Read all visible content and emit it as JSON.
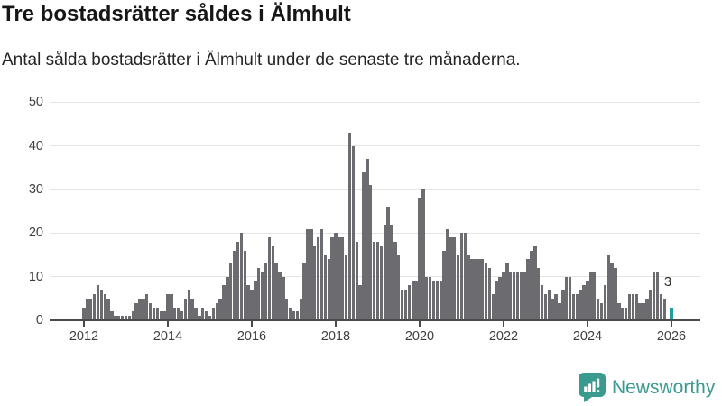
{
  "title": "Tre bostadsrätter såldes i Älmhult",
  "subtitle": "Antal sålda bostadsrätter i Älmhult under de senaste tre månaderna.",
  "annotation": {
    "text": "3"
  },
  "footer": {
    "brand": "Newsworthy",
    "logo_icon": "bar-chart-speech-bubble-icon"
  },
  "colors": {
    "bar": "#6b6b70",
    "highlight": "#219ca0",
    "grid": "#e4e4e4",
    "axis": "#4a4a4a",
    "tick_text": "#3f3f3f",
    "brand": "#3b9a8e"
  },
  "chart_data": {
    "type": "bar",
    "title": "Tre bostadsrätter såldes i Älmhult",
    "subtitle": "Antal sålda bostadsrätter i Älmhult under de senaste tre månaderna.",
    "frequency": "monthly",
    "x_start": "2012-01",
    "x_tick_labels": [
      "2012",
      "2014",
      "2016",
      "2018",
      "2020",
      "2022",
      "2024",
      "2026"
    ],
    "y_ticks": [
      0,
      10,
      20,
      30,
      40,
      50
    ],
    "ylim": [
      0,
      50
    ],
    "grid": "horizontal",
    "legend": "none",
    "highlight_last": true,
    "highlight_value": 3,
    "values": [
      3,
      5,
      5,
      6,
      8,
      7,
      6,
      5,
      2,
      1,
      1,
      1,
      1,
      1,
      2,
      4,
      5,
      5,
      6,
      4,
      3,
      3,
      2,
      2,
      6,
      6,
      3,
      3,
      2,
      5,
      7,
      5,
      3,
      1,
      3,
      2,
      1,
      3,
      4,
      5,
      8,
      10,
      13,
      16,
      18,
      20,
      16,
      8,
      7,
      9,
      12,
      11,
      13,
      19,
      17,
      13,
      11,
      10,
      5,
      3,
      2,
      2,
      5,
      13,
      21,
      21,
      17,
      19,
      21,
      15,
      14,
      19,
      20,
      19,
      19,
      15,
      43,
      40,
      18,
      8,
      34,
      37,
      31,
      18,
      18,
      17,
      22,
      26,
      22,
      18,
      15,
      7,
      7,
      8,
      9,
      9,
      28,
      30,
      10,
      10,
      9,
      9,
      9,
      16,
      21,
      19,
      19,
      15,
      20,
      20,
      15,
      14,
      14,
      14,
      14,
      13,
      12,
      6,
      9,
      10,
      11,
      13,
      11,
      11,
      11,
      11,
      11,
      14,
      16,
      17,
      12,
      8,
      6,
      7,
      5,
      6,
      4,
      7,
      10,
      10,
      6,
      6,
      7,
      8,
      9,
      11,
      11,
      5,
      4,
      8,
      15,
      13,
      12,
      4,
      3,
      3,
      6,
      6,
      6,
      4,
      4,
      5,
      7,
      11,
      11,
      6,
      5,
      0,
      3
    ]
  }
}
